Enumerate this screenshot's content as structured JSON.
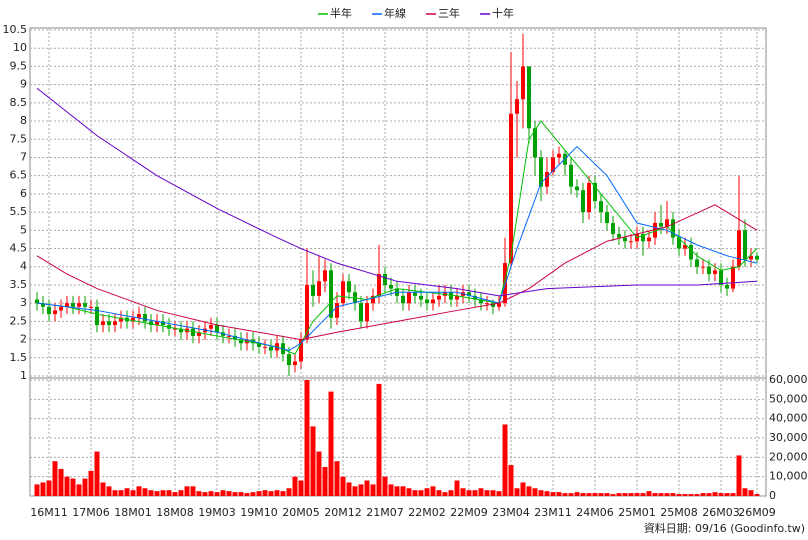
{
  "chart_data": [
    {
      "type": "candlestick",
      "note": "資料日期: 09/16  (Goodinfo.tw)",
      "categories": [
        null,
        null,
        "16M11",
        null,
        null,
        null,
        null,
        null,
        null,
        "17M06",
        null,
        null,
        null,
        null,
        null,
        null,
        "18M01",
        null,
        null,
        null,
        null,
        null,
        null,
        "18M08",
        null,
        null,
        null,
        null,
        null,
        null,
        "19M03",
        null,
        null,
        null,
        null,
        null,
        null,
        "19M10",
        null,
        null,
        null,
        null,
        null,
        null,
        "20M05",
        null,
        null,
        null,
        null,
        null,
        null,
        "20M12",
        null,
        null,
        null,
        null,
        null,
        null,
        "21M07",
        null,
        null,
        null,
        null,
        null,
        null,
        "22M02",
        null,
        null,
        null,
        null,
        null,
        null,
        "22M09",
        null,
        null,
        null,
        null,
        null,
        null,
        "23M04",
        null,
        null,
        null,
        null,
        null,
        null,
        "23M11",
        null,
        null,
        null,
        null,
        null,
        null,
        "24M06",
        null,
        null,
        null,
        null,
        null,
        null,
        "25M01",
        null,
        null,
        null,
        null,
        null,
        null,
        "25M08",
        null,
        null,
        null,
        null,
        null,
        null,
        "26M03",
        null,
        null,
        null,
        null,
        null,
        "26M09"
      ],
      "open": [
        3.1,
        3.0,
        2.9,
        2.7,
        2.8,
        2.9,
        3.0,
        2.9,
        3.0,
        2.9,
        2.9,
        2.4,
        2.5,
        2.4,
        2.5,
        2.6,
        2.5,
        2.6,
        2.7,
        2.5,
        2.4,
        2.5,
        2.4,
        2.3,
        2.3,
        2.2,
        2.3,
        2.1,
        2.2,
        2.3,
        2.4,
        2.2,
        2.1,
        2.1,
        2.0,
        1.9,
        2.0,
        1.9,
        1.8,
        1.8,
        1.7,
        1.9,
        1.6,
        1.3,
        1.4,
        2.0,
        3.5,
        3.2,
        3.6,
        3.9,
        2.6,
        3.0,
        3.6,
        3.3,
        3.0,
        2.5,
        3.0,
        3.2,
        3.8,
        3.5,
        3.4,
        3.2,
        3.0,
        3.3,
        3.2,
        3.1,
        3.0,
        3.1,
        3.2,
        3.3,
        3.1,
        3.2,
        3.3,
        3.2,
        3.1,
        3.0,
        3.0,
        2.9,
        3.0,
        4.1,
        8.2,
        8.6,
        9.5,
        7.8,
        7.0,
        6.2,
        6.6,
        7.0,
        7.1,
        6.8,
        6.2,
        6.1,
        5.5,
        6.3,
        5.8,
        5.5,
        5.2,
        4.9,
        4.8,
        4.7,
        4.7,
        4.9,
        4.7,
        4.8,
        5.2,
        5.1,
        5.3,
        4.8,
        4.5,
        4.6,
        4.2,
        4.0,
        4.0,
        3.8,
        3.9,
        3.5,
        3.4,
        4.0,
        5.0,
        4.2,
        4.3
      ],
      "high": [
        3.3,
        3.2,
        3.1,
        3.0,
        3.1,
        3.2,
        3.2,
        3.2,
        3.2,
        3.1,
        3.1,
        2.7,
        2.7,
        2.7,
        2.8,
        2.8,
        2.8,
        2.9,
        2.9,
        2.7,
        2.7,
        2.7,
        2.6,
        2.5,
        2.5,
        2.5,
        2.5,
        2.4,
        2.5,
        2.6,
        2.6,
        2.4,
        2.3,
        2.3,
        2.2,
        2.2,
        2.2,
        2.1,
        2.0,
        2.0,
        2.1,
        2.1,
        1.8,
        1.6,
        2.2,
        4.5,
        3.9,
        4.3,
        4.2,
        4.1,
        3.3,
        3.8,
        3.8,
        3.5,
        3.2,
        3.2,
        3.4,
        4.6,
        4.0,
        3.7,
        3.6,
        3.4,
        3.5,
        3.5,
        3.4,
        3.3,
        3.3,
        3.5,
        3.5,
        3.5,
        3.4,
        3.5,
        3.5,
        3.4,
        3.3,
        3.2,
        3.1,
        3.2,
        4.8,
        9.9,
        9.1,
        10.4,
        9.5,
        8.0,
        7.2,
        7.0,
        7.2,
        7.3,
        7.2,
        7.0,
        6.4,
        6.3,
        6.5,
        6.5,
        6.0,
        5.7,
        5.4,
        5.1,
        5.0,
        4.9,
        5.1,
        5.1,
        5.0,
        5.5,
        5.7,
        5.8,
        5.5,
        5.0,
        4.8,
        4.8,
        4.4,
        4.2,
        4.2,
        4.1,
        4.1,
        3.7,
        4.2,
        6.5,
        5.3,
        4.5,
        4.4
      ],
      "low": [
        2.8,
        2.7,
        2.5,
        2.5,
        2.6,
        2.7,
        2.7,
        2.7,
        2.7,
        2.7,
        2.2,
        2.2,
        2.2,
        2.2,
        2.3,
        2.3,
        2.3,
        2.4,
        2.3,
        2.2,
        2.2,
        2.2,
        2.1,
        2.1,
        2.0,
        2.0,
        1.9,
        1.9,
        2.0,
        2.1,
        2.0,
        1.9,
        1.9,
        1.8,
        1.7,
        1.7,
        1.7,
        1.6,
        1.6,
        1.5,
        1.5,
        1.4,
        1.0,
        1.1,
        1.2,
        1.9,
        2.9,
        3.0,
        3.3,
        2.3,
        2.4,
        2.9,
        3.1,
        2.8,
        2.3,
        2.3,
        2.8,
        3.0,
        3.3,
        3.2,
        3.0,
        2.8,
        2.8,
        3.0,
        2.9,
        2.8,
        2.8,
        2.9,
        3.0,
        2.9,
        2.9,
        3.0,
        3.0,
        2.9,
        2.8,
        2.8,
        2.7,
        2.8,
        2.9,
        4.0,
        7.0,
        7.8,
        7.4,
        6.5,
        5.8,
        6.0,
        6.5,
        6.8,
        6.5,
        6.0,
        5.9,
        5.2,
        5.3,
        5.6,
        5.2,
        5.0,
        4.7,
        4.6,
        4.5,
        4.5,
        4.5,
        4.3,
        4.5,
        4.6,
        4.9,
        4.9,
        4.6,
        4.3,
        4.3,
        4.0,
        3.8,
        3.8,
        3.6,
        3.6,
        3.3,
        3.2,
        3.3,
        3.9,
        4.0,
        4.0,
        4.1
      ],
      "close": [
        3.0,
        2.9,
        2.7,
        2.8,
        2.9,
        3.0,
        2.9,
        3.0,
        2.9,
        2.9,
        2.4,
        2.5,
        2.4,
        2.5,
        2.6,
        2.5,
        2.6,
        2.7,
        2.5,
        2.4,
        2.5,
        2.4,
        2.3,
        2.3,
        2.2,
        2.3,
        2.1,
        2.2,
        2.3,
        2.4,
        2.2,
        2.1,
        2.1,
        2.0,
        1.9,
        2.0,
        1.9,
        1.8,
        1.8,
        1.7,
        1.9,
        1.6,
        1.3,
        1.4,
        2.0,
        3.5,
        3.2,
        3.6,
        3.9,
        2.6,
        3.0,
        3.6,
        3.3,
        3.0,
        2.5,
        3.0,
        3.2,
        3.8,
        3.5,
        3.4,
        3.2,
        3.0,
        3.3,
        3.2,
        3.1,
        3.0,
        3.1,
        3.2,
        3.3,
        3.1,
        3.2,
        3.3,
        3.2,
        3.1,
        3.0,
        3.0,
        2.9,
        3.0,
        4.1,
        8.2,
        8.6,
        9.5,
        7.8,
        7.0,
        6.2,
        6.6,
        7.0,
        7.1,
        6.8,
        6.2,
        6.1,
        5.5,
        6.3,
        5.8,
        5.5,
        5.2,
        4.9,
        4.8,
        4.7,
        4.7,
        4.9,
        4.7,
        4.8,
        5.2,
        5.1,
        5.3,
        4.8,
        4.5,
        4.6,
        4.2,
        4.0,
        4.0,
        3.8,
        3.9,
        3.5,
        3.4,
        4.0,
        5.0,
        4.2,
        4.3,
        4.2
      ],
      "up_color": "#ff0000",
      "down_color": "#00a000",
      "series": [
        {
          "name": "半年",
          "color": "#00c000",
          "x": [
            0,
            5,
            10,
            20,
            30,
            40,
            43,
            46,
            50,
            55,
            60,
            70,
            77,
            79,
            82,
            84,
            90,
            95,
            100,
            105,
            110,
            114,
            117,
            120
          ],
          "values": [
            3.0,
            2.9,
            2.7,
            2.4,
            2.1,
            1.8,
            1.6,
            2.5,
            3.2,
            3.1,
            3.4,
            3.2,
            3.0,
            4.3,
            7.5,
            8.0,
            6.8,
            5.8,
            4.8,
            5.1,
            4.3,
            3.9,
            4.0,
            4.5
          ]
        },
        {
          "name": "年線",
          "color": "#0066ff",
          "x": [
            0,
            10,
            20,
            30,
            42,
            44,
            50,
            60,
            70,
            77,
            80,
            84,
            90,
            95,
            100,
            105,
            110,
            115,
            120
          ],
          "values": [
            3.0,
            2.8,
            2.5,
            2.2,
            1.7,
            1.9,
            2.9,
            3.3,
            3.3,
            3.0,
            4.5,
            6.3,
            7.3,
            6.5,
            5.2,
            5.0,
            4.6,
            4.3,
            4.1
          ]
        },
        {
          "name": "三年",
          "color": "#cc0044",
          "x": [
            0,
            5,
            10,
            20,
            30,
            44,
            50,
            60,
            70,
            77,
            82,
            88,
            95,
            105,
            113,
            120
          ],
          "values": [
            4.3,
            3.8,
            3.4,
            2.8,
            2.4,
            2.0,
            2.2,
            2.5,
            2.8,
            3.0,
            3.4,
            4.1,
            4.7,
            5.1,
            5.7,
            5.0
          ]
        },
        {
          "name": "十年",
          "color": "#6600cc",
          "x": [
            0,
            10,
            20,
            30,
            40,
            44,
            50,
            60,
            70,
            77,
            85,
            100,
            110,
            120
          ],
          "values": [
            8.9,
            7.6,
            6.5,
            5.6,
            4.8,
            4.5,
            4.1,
            3.6,
            3.4,
            3.2,
            3.4,
            3.5,
            3.5,
            3.6
          ]
        }
      ],
      "ylim": [
        1,
        10.5
      ],
      "yticks": [
        1,
        1.5,
        2,
        2.5,
        3,
        3.5,
        4,
        4.5,
        5,
        5.5,
        6,
        6.5,
        7,
        7.5,
        8,
        8.5,
        9,
        9.5,
        10,
        10.5
      ],
      "grid": true
    },
    {
      "type": "bar",
      "values": [
        6000,
        7000,
        8000,
        18000,
        14000,
        10000,
        9000,
        6000,
        9000,
        13000,
        23000,
        7000,
        5000,
        3000,
        3000,
        4000,
        3000,
        5000,
        4000,
        3000,
        2500,
        3000,
        3000,
        2000,
        3000,
        5000,
        5000,
        2500,
        2000,
        2500,
        2000,
        3000,
        2500,
        2000,
        2000,
        1500,
        2000,
        2500,
        3000,
        2500,
        3000,
        2500,
        4000,
        10000,
        8000,
        60000,
        36000,
        23000,
        15000,
        54000,
        18000,
        10000,
        7000,
        5000,
        6000,
        8000,
        6000,
        58000,
        10000,
        6000,
        5000,
        5000,
        4000,
        3000,
        3000,
        4000,
        5000,
        3000,
        2000,
        3000,
        8000,
        4000,
        3000,
        3000,
        4000,
        3000,
        3000,
        2500,
        37000,
        16000,
        4000,
        7000,
        5000,
        4000,
        3000,
        2500,
        2000,
        2000,
        1500,
        1500,
        2000,
        1500,
        1500,
        1500,
        1500,
        1500,
        1000,
        1500,
        1500,
        1500,
        1500,
        1500,
        2500,
        1500,
        1500,
        1500,
        1500,
        1000,
        1000,
        1000,
        1000,
        1500,
        1500,
        2000,
        1500,
        1500,
        1500,
        21000,
        4000,
        3000,
        1000
      ],
      "color": "#ff0000",
      "ylim": [
        0,
        60000
      ],
      "yticks": [
        0,
        {
          "value": 10000,
          "label": "10,000"
        },
        {
          "value": 20000,
          "label": "20,000"
        },
        {
          "value": 30000,
          "label": "30,000"
        },
        {
          "value": 40000,
          "label": "40,000"
        },
        {
          "value": 50000,
          "label": "50,000"
        },
        {
          "value": 60000,
          "label": "60,000"
        }
      ],
      "grid": true
    }
  ]
}
